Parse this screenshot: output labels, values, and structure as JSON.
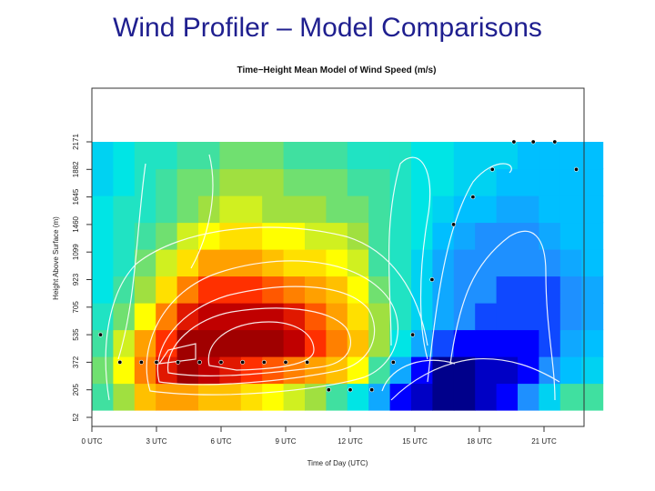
{
  "slide": {
    "title": "Wind Profiler – Model Comparisons"
  },
  "chart_data": {
    "type": "heatmap",
    "title": "Time−Height Mean Model of Wind Speed (m/s)",
    "xlabel": "Time of Day (UTC)",
    "ylabel": "Height Above Surface (m)",
    "x_ticks": [
      "0 UTC",
      "3 UTC",
      "6 UTC",
      "9 UTC",
      "12 UTC",
      "15 UTC",
      "18 UTC",
      "21 UTC"
    ],
    "y_ticks": [
      "52",
      "205",
      "372",
      "535",
      "705",
      "923",
      "1099",
      "1460",
      "1645",
      "1882",
      "2171"
    ],
    "hours": [
      0,
      1,
      2,
      3,
      4,
      5,
      6,
      7,
      8,
      9,
      10,
      11,
      12,
      13,
      14,
      15,
      16,
      17,
      18,
      19,
      20,
      21,
      22,
      23
    ],
    "heights": [
      "52",
      "205",
      "372",
      "535",
      "705",
      "923",
      "1099",
      "1460",
      "1645",
      "1882"
    ],
    "colormap": [
      "#00008b",
      "#0000ff",
      "#1e90ff",
      "#00bfff",
      "#00e5e5",
      "#40e0a0",
      "#a0e040",
      "#ffff00",
      "#ffc000",
      "#ff8000",
      "#ff3000",
      "#c00000",
      "#800000"
    ],
    "value_range": [
      2,
      14
    ],
    "speed_grid": [
      [
        7.0,
        8.0,
        10.0,
        10.5,
        10.5,
        10.0,
        10.0,
        9.5,
        9.0,
        8.5,
        8.0,
        7.0,
        6.0,
        4.5,
        3.0,
        2.5,
        2.0,
        2.0,
        2.5,
        3.0,
        4.0,
        5.5,
        7.0,
        7.0
      ],
      [
        7.5,
        9.0,
        11.0,
        12.5,
        13.5,
        13.0,
        12.5,
        12.0,
        11.5,
        11.0,
        10.5,
        10.0,
        9.0,
        7.0,
        4.5,
        3.0,
        2.0,
        2.0,
        2.5,
        2.5,
        3.0,
        4.0,
        5.0,
        5.5
      ],
      [
        7.0,
        8.5,
        10.5,
        12.0,
        13.5,
        13.5,
        13.5,
        13.5,
        13.5,
        13.0,
        12.0,
        11.0,
        10.0,
        8.0,
        6.0,
        4.5,
        3.5,
        3.0,
        3.0,
        3.0,
        3.0,
        3.5,
        4.5,
        5.0
      ],
      [
        6.5,
        7.5,
        9.0,
        11.0,
        12.5,
        13.0,
        13.0,
        13.0,
        13.0,
        12.5,
        11.5,
        10.5,
        9.5,
        8.0,
        6.5,
        5.5,
        4.5,
        4.0,
        3.5,
        3.5,
        3.5,
        3.5,
        4.0,
        4.5
      ],
      [
        6.0,
        7.0,
        8.0,
        9.5,
        11.0,
        12.0,
        12.0,
        12.0,
        11.5,
        11.0,
        10.5,
        10.0,
        9.0,
        7.5,
        6.5,
        5.5,
        4.5,
        4.0,
        4.0,
        3.5,
        3.5,
        3.5,
        4.0,
        4.5
      ],
      [
        6.0,
        6.5,
        7.5,
        8.5,
        9.5,
        10.5,
        10.5,
        10.5,
        10.0,
        9.5,
        9.5,
        9.0,
        8.5,
        7.0,
        6.5,
        5.5,
        4.5,
        4.0,
        4.0,
        4.0,
        4.0,
        4.0,
        4.5,
        5.0
      ],
      [
        6.0,
        6.5,
        7.0,
        7.5,
        8.5,
        9.0,
        9.5,
        9.5,
        9.0,
        9.0,
        8.5,
        8.5,
        8.0,
        7.0,
        6.5,
        6.0,
        5.0,
        4.5,
        4.0,
        4.0,
        4.0,
        4.5,
        5.0,
        5.0
      ],
      [
        6.0,
        6.5,
        6.5,
        7.0,
        7.5,
        8.0,
        8.5,
        8.5,
        8.0,
        8.0,
        8.0,
        7.5,
        7.5,
        7.0,
        6.5,
        6.0,
        5.5,
        5.0,
        5.0,
        4.5,
        4.5,
        5.0,
        5.0,
        5.0
      ],
      [
        5.5,
        6.0,
        6.5,
        7.0,
        7.5,
        7.5,
        8.0,
        8.0,
        8.0,
        7.5,
        7.5,
        7.5,
        7.0,
        7.0,
        6.5,
        6.0,
        6.0,
        5.5,
        5.5,
        5.0,
        5.0,
        5.0,
        5.0,
        5.0
      ],
      [
        5.5,
        6.0,
        6.5,
        6.5,
        7.0,
        7.0,
        7.5,
        7.5,
        7.5,
        7.0,
        7.0,
        7.0,
        6.5,
        6.5,
        6.5,
        6.0,
        6.0,
        5.5,
        5.5,
        5.5,
        5.0,
        5.0,
        5.0,
        5.0
      ]
    ],
    "points": [
      {
        "hour": 0.4,
        "height": "535"
      },
      {
        "hour": 1.3,
        "height": "372"
      },
      {
        "hour": 2.3,
        "height": "372"
      },
      {
        "hour": 3.0,
        "height": "372"
      },
      {
        "hour": 4.0,
        "height": "372"
      },
      {
        "hour": 5.0,
        "height": "372"
      },
      {
        "hour": 6.0,
        "height": "372"
      },
      {
        "hour": 7.0,
        "height": "372"
      },
      {
        "hour": 8.0,
        "height": "372"
      },
      {
        "hour": 9.0,
        "height": "372"
      },
      {
        "hour": 10.0,
        "height": "372"
      },
      {
        "hour": 11.0,
        "height": "205"
      },
      {
        "hour": 12.0,
        "height": "205"
      },
      {
        "hour": 13.0,
        "height": "205"
      },
      {
        "hour": 14.0,
        "height": "372"
      },
      {
        "hour": 14.9,
        "height": "535"
      },
      {
        "hour": 15.8,
        "height": "923"
      },
      {
        "hour": 16.8,
        "height": "1460"
      },
      {
        "hour": 17.7,
        "height": "1645"
      },
      {
        "hour": 18.6,
        "height": "1882"
      },
      {
        "hour": 19.6,
        "height": "2171"
      },
      {
        "hour": 20.5,
        "height": "2171"
      },
      {
        "hour": 21.5,
        "height": "2171"
      },
      {
        "hour": 22.5,
        "height": "1882"
      }
    ]
  }
}
